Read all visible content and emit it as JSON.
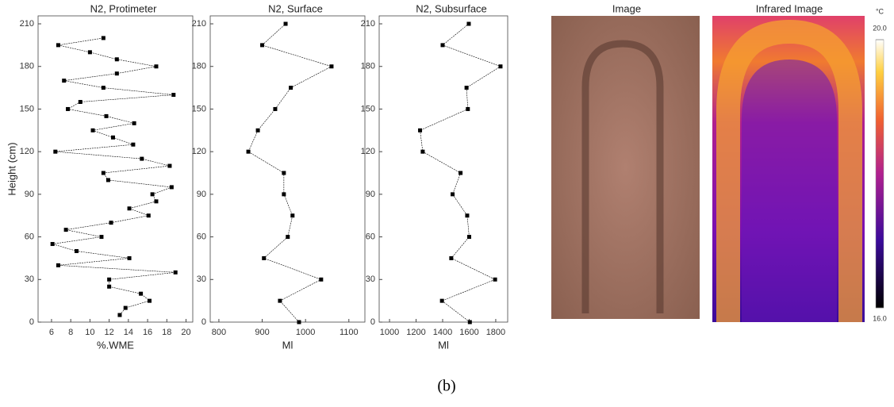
{
  "chart_data": [
    {
      "type": "line",
      "title": "N2, Protimeter",
      "x_label": "%.WME",
      "y_label": "Height (cm)",
      "xlim": [
        4.6,
        20.7
      ],
      "xticks": [
        6,
        8,
        10,
        12,
        14,
        16,
        18,
        20
      ],
      "ylim": [
        0,
        215.6
      ],
      "yticks": [
        0,
        30,
        60,
        90,
        120,
        150,
        180,
        210
      ],
      "series": [
        {
          "color": "#000000",
          "y": [
            5,
            10,
            15,
            20,
            25,
            30,
            35,
            40,
            45,
            50,
            55,
            60,
            65,
            70,
            75,
            80,
            85,
            90,
            95,
            100,
            105,
            110,
            115,
            120,
            125,
            130,
            135,
            140,
            145,
            150,
            155,
            160,
            165,
            170,
            175,
            180,
            185,
            190,
            195,
            200
          ],
          "values": [
            13.1,
            13.7,
            16.2,
            15.3,
            12.0,
            12.0,
            18.9,
            6.7,
            14.1,
            8.6,
            6.1,
            11.2,
            7.5,
            12.2,
            16.1,
            14.1,
            16.9,
            16.5,
            18.5,
            11.9,
            11.4,
            18.3,
            15.4,
            6.4,
            14.5,
            12.4,
            10.3,
            14.6,
            11.7,
            7.7,
            9.0,
            18.7,
            11.4,
            7.3,
            12.8,
            16.9,
            12.8,
            10.0,
            6.7,
            11.4
          ]
        }
      ]
    },
    {
      "type": "line",
      "title": "N2, Surface",
      "x_label": "Ml",
      "xlim": [
        780,
        1137
      ],
      "xticks": [
        800,
        900,
        1000,
        1100
      ],
      "ylim": [
        0,
        215.6
      ],
      "yticks": [
        0,
        30,
        60,
        90,
        120,
        150,
        180,
        210
      ],
      "series": [
        {
          "color": "#000000",
          "y": [
            0,
            15,
            30,
            45,
            60,
            75,
            90,
            105,
            120,
            135,
            150,
            165,
            180,
            195,
            210
          ],
          "values": [
            985,
            941,
            1036,
            904,
            959,
            970,
            950,
            950,
            868,
            890,
            930,
            966,
            1060,
            900,
            954
          ]
        }
      ]
    },
    {
      "type": "line",
      "title": "N2, Subsurface",
      "x_label": "Ml",
      "xlim": [
        922,
        1890
      ],
      "xticks": [
        1000,
        1200,
        1400,
        1600,
        1800
      ],
      "ylim": [
        0,
        215.6
      ],
      "yticks": [
        0,
        30,
        60,
        90,
        120,
        150,
        180,
        210
      ],
      "series": [
        {
          "color": "#000000",
          "y": [
            0,
            15,
            30,
            45,
            60,
            75,
            90,
            105,
            120,
            135,
            150,
            165,
            180,
            195,
            210
          ],
          "values": [
            1605,
            1395,
            1795,
            1465,
            1600,
            1585,
            1475,
            1535,
            1250,
            1230,
            1590,
            1580,
            1836,
            1400,
            1597
          ]
        }
      ]
    }
  ],
  "figure": {
    "image_title": "Image",
    "infrared_title": "Infrared Image",
    "caption": "(b)",
    "colorbar": {
      "unit": "°C",
      "lim": [
        16,
        20
      ],
      "ticks": [
        {
          "value": 16,
          "label": "16.0"
        },
        {
          "value": 20,
          "label": "20.0"
        }
      ]
    }
  }
}
